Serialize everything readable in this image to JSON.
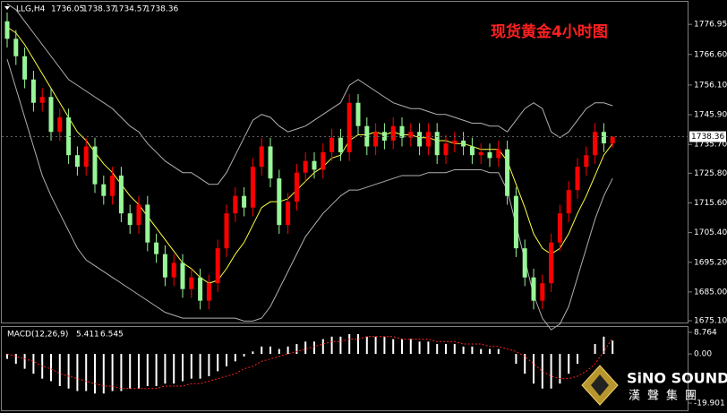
{
  "chart_data": [
    {
      "type": "candlestick",
      "symbol": "LLG,H4",
      "title": "现货黄金4小时图",
      "up_color": "#ff0000",
      "down_color": "#98f598",
      "ylim": [
        1674.5,
        1784.7
      ],
      "yticks": [
        1776.95,
        {
          "value": 1766.6,
          "label": "1766.60"
        },
        {
          "value": 1756.1,
          "label": "1756.10"
        },
        {
          "value": 1745.9,
          "label": "1745.90"
        },
        {
          "value": 1735.7,
          "label": "1735.70"
        },
        {
          "value": 1725.8,
          "label": "1725.80"
        },
        {
          "value": 1715.6,
          "label": "1715.60"
        },
        {
          "value": 1705.4,
          "label": "1705.40"
        },
        {
          "value": 1695.2,
          "label": "1695.20"
        },
        {
          "value": 1685,
          "label": "1685.00"
        },
        {
          "value": 1675.1,
          "label": "1675.10"
        }
      ],
      "open": [
        1778,
        1772,
        1766,
        1758,
        1750,
        1752,
        1740,
        1745,
        1732,
        1728,
        1735,
        1722,
        1718,
        1725,
        1712,
        1708,
        1715,
        1702,
        1698,
        1690,
        1695,
        1686,
        1690,
        1682,
        1688,
        1700,
        1712,
        1718,
        1714,
        1728,
        1735,
        1724,
        1708,
        1716,
        1726,
        1730,
        1727,
        1733,
        1738,
        1733,
        1750,
        1742,
        1735,
        1740,
        1737,
        1742,
        1738,
        1740,
        1735,
        1740,
        1732,
        1736,
        1737,
        1735,
        1732,
        1733,
        1731,
        1734,
        1718,
        1700,
        1690,
        1682,
        1688,
        1702,
        1712,
        1720,
        1728,
        1732,
        1740,
        1736.05
      ],
      "high": [
        1781,
        1775,
        1769,
        1761,
        1755,
        1755,
        1748,
        1748,
        1735,
        1738,
        1738,
        1725,
        1728,
        1728,
        1715,
        1718,
        1718,
        1705,
        1701,
        1698,
        1698,
        1693,
        1693,
        1691,
        1703,
        1715,
        1721,
        1721,
        1731,
        1738,
        1738,
        1727,
        1719,
        1729,
        1733,
        1733,
        1736,
        1741,
        1741,
        1753,
        1753,
        1745,
        1743,
        1743,
        1745,
        1745,
        1743,
        1743,
        1743,
        1743,
        1739,
        1740,
        1740,
        1738,
        1736,
        1736,
        1737,
        1737,
        1721,
        1703,
        1693,
        1691,
        1705,
        1715,
        1723,
        1731,
        1735,
        1743,
        1743,
        1738.37
      ],
      "low": [
        1769,
        1763,
        1755,
        1747,
        1747,
        1737,
        1737,
        1729,
        1725,
        1725,
        1719,
        1715,
        1715,
        1709,
        1705,
        1705,
        1699,
        1695,
        1687,
        1687,
        1683,
        1683,
        1679,
        1679,
        1685,
        1697,
        1709,
        1711,
        1711,
        1725,
        1721,
        1705,
        1705,
        1713,
        1723,
        1724,
        1724,
        1730,
        1730,
        1730,
        1739,
        1732,
        1732,
        1734,
        1734,
        1735,
        1735,
        1732,
        1732,
        1729,
        1729,
        1733,
        1732,
        1729,
        1729,
        1728,
        1728,
        1715,
        1697,
        1687,
        1679,
        1679,
        1685,
        1699,
        1709,
        1717,
        1725,
        1729,
        1733.05,
        1734.57
      ],
      "close": [
        1772,
        1766,
        1758,
        1750,
        1752,
        1740,
        1745,
        1732,
        1728,
        1735,
        1722,
        1718,
        1725,
        1712,
        1708,
        1715,
        1702,
        1698,
        1690,
        1695,
        1686,
        1690,
        1682,
        1688,
        1700,
        1712,
        1718,
        1714,
        1728,
        1735,
        1724,
        1708,
        1716,
        1726,
        1730,
        1727,
        1733,
        1738,
        1733,
        1750,
        1742,
        1735,
        1740,
        1737,
        1742,
        1738,
        1740,
        1735,
        1740,
        1732,
        1736,
        1737,
        1735,
        1732,
        1733,
        1731,
        1734,
        1718,
        1700,
        1690,
        1682,
        1688,
        1702,
        1712,
        1720,
        1728,
        1732,
        1740,
        1736.05,
        1738.36
      ],
      "lines": [
        {
          "color": "#b0b0b0",
          "values": [
            1784,
            1782,
            1778,
            1774,
            1770,
            1766,
            1762,
            1758,
            1756,
            1754,
            1752,
            1750,
            1748,
            1745,
            1742,
            1740,
            1736,
            1733,
            1730,
            1728,
            1726,
            1726,
            1724,
            1722,
            1722,
            1726,
            1732,
            1738,
            1744,
            1746,
            1745,
            1742,
            1740,
            1741,
            1742,
            1744,
            1746,
            1748,
            1750,
            1756,
            1758,
            1756,
            1754,
            1752,
            1750,
            1749,
            1748,
            1748,
            1747,
            1746,
            1746,
            1745,
            1744,
            1743,
            1743,
            1742,
            1742,
            1740,
            1744,
            1748,
            1750,
            1748,
            1740,
            1738,
            1740,
            1744,
            1748,
            1750,
            1750,
            1749
          ]
        },
        {
          "color": "#b0b0b0",
          "values": [
            1765,
            1755,
            1745,
            1735,
            1725,
            1718,
            1712,
            1706,
            1700,
            1696,
            1694,
            1692,
            1690,
            1688,
            1686,
            1684,
            1682,
            1680,
            1678,
            1677,
            1676,
            1676,
            1676,
            1676,
            1676,
            1676,
            1676,
            1675,
            1675,
            1676,
            1680,
            1686,
            1692,
            1698,
            1704,
            1708,
            1712,
            1715,
            1718,
            1720,
            1720,
            1721,
            1722,
            1723,
            1724,
            1725,
            1725,
            1725,
            1726,
            1726,
            1726,
            1727,
            1727,
            1727,
            1727,
            1726,
            1726,
            1720,
            1708,
            1696,
            1684,
            1676,
            1672,
            1674,
            1680,
            1690,
            1700,
            1710,
            1718,
            1724
          ]
        },
        {
          "color": "#ffff40",
          "values": [
            1776,
            1774,
            1770,
            1765,
            1760,
            1755,
            1750,
            1745,
            1740,
            1737,
            1733,
            1729,
            1726,
            1722,
            1718,
            1715,
            1711,
            1707,
            1703,
            1699,
            1695,
            1693,
            1690,
            1688,
            1689,
            1693,
            1698,
            1702,
            1708,
            1714,
            1716,
            1716,
            1717,
            1720,
            1723,
            1726,
            1728,
            1731,
            1732,
            1737,
            1739,
            1739,
            1740,
            1739,
            1740,
            1739,
            1739,
            1738,
            1738,
            1737,
            1737,
            1736,
            1736,
            1735,
            1734,
            1734,
            1734,
            1730,
            1722,
            1714,
            1705,
            1700,
            1698,
            1700,
            1705,
            1712,
            1718,
            1725,
            1732,
            1736
          ]
        }
      ]
    },
    {
      "type": "macd",
      "label": "MACD(12,26,9)",
      "hist_color": "#ffffff",
      "signal_color": "#ff2020",
      "ylim": [
        -22.8,
        10.9
      ],
      "yticks": [
        8.764,
        {
          "value": 0,
          "label": "0.00"
        },
        -19.901
      ],
      "histogram": [
        -2,
        -4,
        -6,
        -8,
        -10,
        -11,
        -13,
        -14,
        -15,
        -15,
        -16,
        -16,
        -15,
        -15,
        -14,
        -14,
        -13,
        -13,
        -12,
        -12,
        -11,
        -10,
        -10,
        -9,
        -7,
        -5,
        -3,
        -1,
        1,
        3,
        3,
        2,
        3,
        4,
        5,
        5,
        6,
        7,
        7,
        8,
        8,
        7,
        7,
        7,
        6,
        6,
        6,
        5,
        5,
        4,
        4,
        4,
        3,
        3,
        2,
        2,
        2,
        0,
        -4,
        -8,
        -12,
        -14,
        -14,
        -12,
        -8,
        -4,
        0,
        4,
        7,
        5.411
      ],
      "signal": [
        0,
        -1,
        -2,
        -3,
        -5,
        -6,
        -8,
        -9,
        -10,
        -11,
        -12,
        -13,
        -13,
        -14,
        -14,
        -14,
        -14,
        -14,
        -13,
        -13,
        -13,
        -12,
        -12,
        -11,
        -10,
        -9,
        -8,
        -6,
        -5,
        -3,
        -2,
        -1,
        0,
        1,
        2,
        3,
        4,
        5,
        5,
        6,
        6,
        7,
        7,
        7,
        7,
        6,
        6,
        6,
        6,
        5,
        5,
        5,
        4,
        4,
        4,
        3,
        3,
        2,
        1,
        -1,
        -4,
        -7,
        -9,
        -10,
        -10,
        -9,
        -7,
        -4,
        1,
        6.545
      ]
    }
  ],
  "logo": {
    "name": "SiNO SOUND",
    "sub": "漢聲集團"
  }
}
